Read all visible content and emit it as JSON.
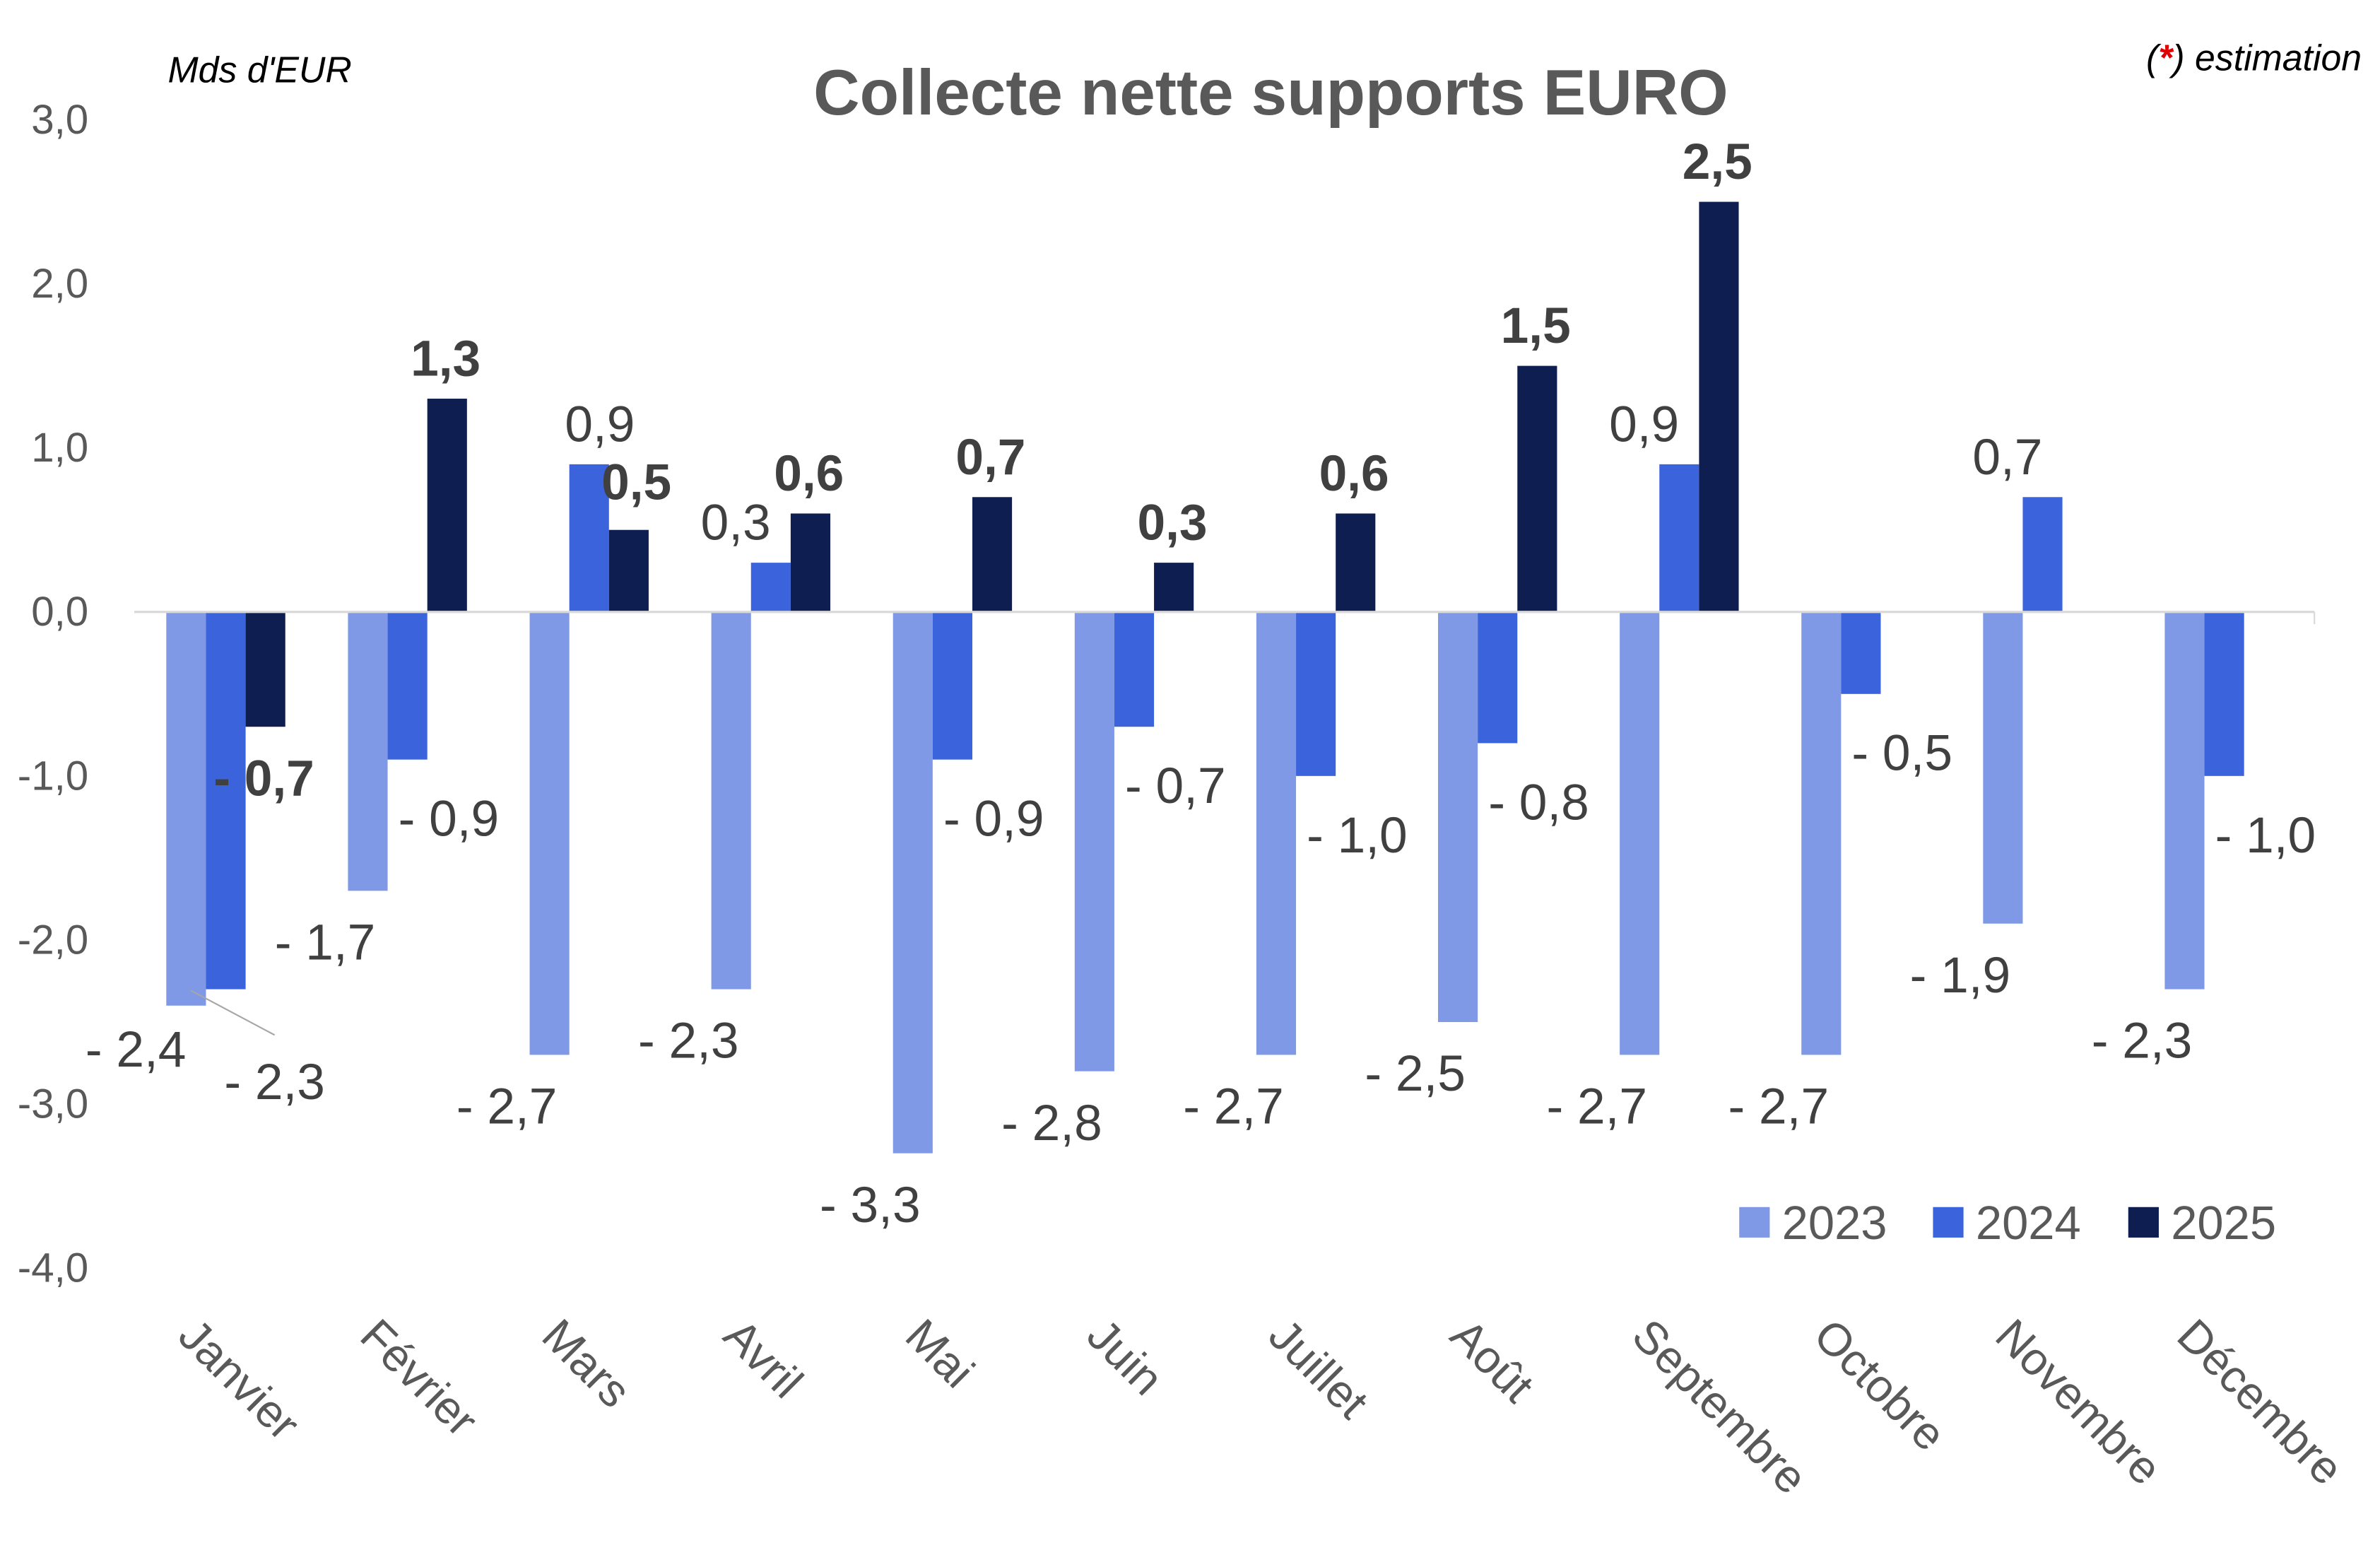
{
  "chart_data": {
    "type": "bar",
    "title": "Collecte nette supports EURO",
    "unit_label": "Mds d'EUR",
    "note": {
      "marker": "*",
      "text": ") estimation",
      "open": "("
    },
    "categories": [
      "Janvier",
      "Février",
      "Mars",
      "Avril",
      "Mai",
      "Juin",
      "Juillet",
      "Août",
      "Septembre",
      "Octobre",
      "Novembre",
      "Décembre"
    ],
    "series": [
      {
        "name": "2023",
        "color": "#7F99E6",
        "values": [
          -2.4,
          -1.7,
          -2.7,
          -2.3,
          -3.3,
          -2.8,
          -2.7,
          -2.5,
          -2.7,
          -2.7,
          -1.9,
          -2.3
        ],
        "labels": [
          "- 2,4",
          "- 1,7",
          "- 2,7",
          "- 2,3",
          "- 3,3",
          "- 2,8",
          "- 2,7",
          "- 2,5",
          "- 2,7",
          "- 2,7",
          "- 1,9",
          "- 2,3"
        ]
      },
      {
        "name": "2024",
        "color": "#3B63DC",
        "values": [
          -2.3,
          -0.9,
          0.9,
          0.3,
          -0.9,
          -0.7,
          -1.0,
          -0.8,
          0.9,
          -0.5,
          0.7,
          -1.0
        ],
        "labels": [
          "- 2,3",
          "- 0,9",
          "0,9",
          "0,3",
          "- 0,9",
          "- 0,7",
          "- 1,0",
          "- 0,8",
          "0,9",
          "- 0,5",
          "0,7",
          "- 1,0"
        ]
      },
      {
        "name": "2025",
        "color": "#0F1E50",
        "values": [
          -0.7,
          1.3,
          0.5,
          0.6,
          0.7,
          0.3,
          0.6,
          1.5,
          2.5,
          null,
          null,
          null
        ],
        "labels": [
          "- 0,7",
          "1,3",
          "0,5",
          "0,6",
          "0,7",
          "0,3",
          "0,6",
          "1,5",
          "2,5",
          "",
          "",
          ""
        ]
      }
    ],
    "yticks": [
      "3,0",
      "2,0",
      "1,0",
      "0,0",
      "-1,0",
      "-2,0",
      "-3,0",
      "-4,0"
    ],
    "ytick_values": [
      3,
      2,
      1,
      0,
      -1,
      -2,
      -3,
      -4
    ],
    "ylim": [
      -4,
      3
    ],
    "grid": false,
    "legend": "bottom-right",
    "note_color": "#E00000"
  }
}
